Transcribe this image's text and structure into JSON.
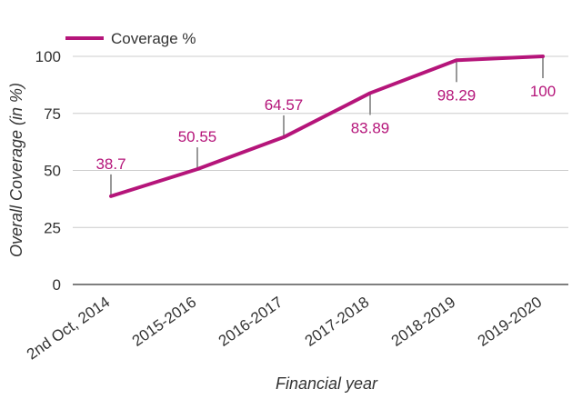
{
  "chart_data": {
    "type": "line",
    "categories": [
      "2nd Oct, 2014",
      "2015-2016",
      "2016-2017",
      "2017-2018",
      "2018-2019",
      "2019-2020"
    ],
    "series": [
      {
        "name": "Coverage %",
        "values": [
          38.7,
          50.55,
          64.57,
          83.89,
          98.29,
          100
        ],
        "color": "#b5157a"
      }
    ],
    "data_labels": [
      "38.7",
      "50.55",
      "64.57",
      "83.89",
      "98.29",
      "100"
    ],
    "xlabel": "Financial year",
    "ylabel": "Overall Coverage (in %)",
    "ylim": [
      0,
      100
    ],
    "yticks": [
      0,
      25,
      50,
      75,
      100
    ],
    "grid": true,
    "legend_position": "top-left"
  }
}
